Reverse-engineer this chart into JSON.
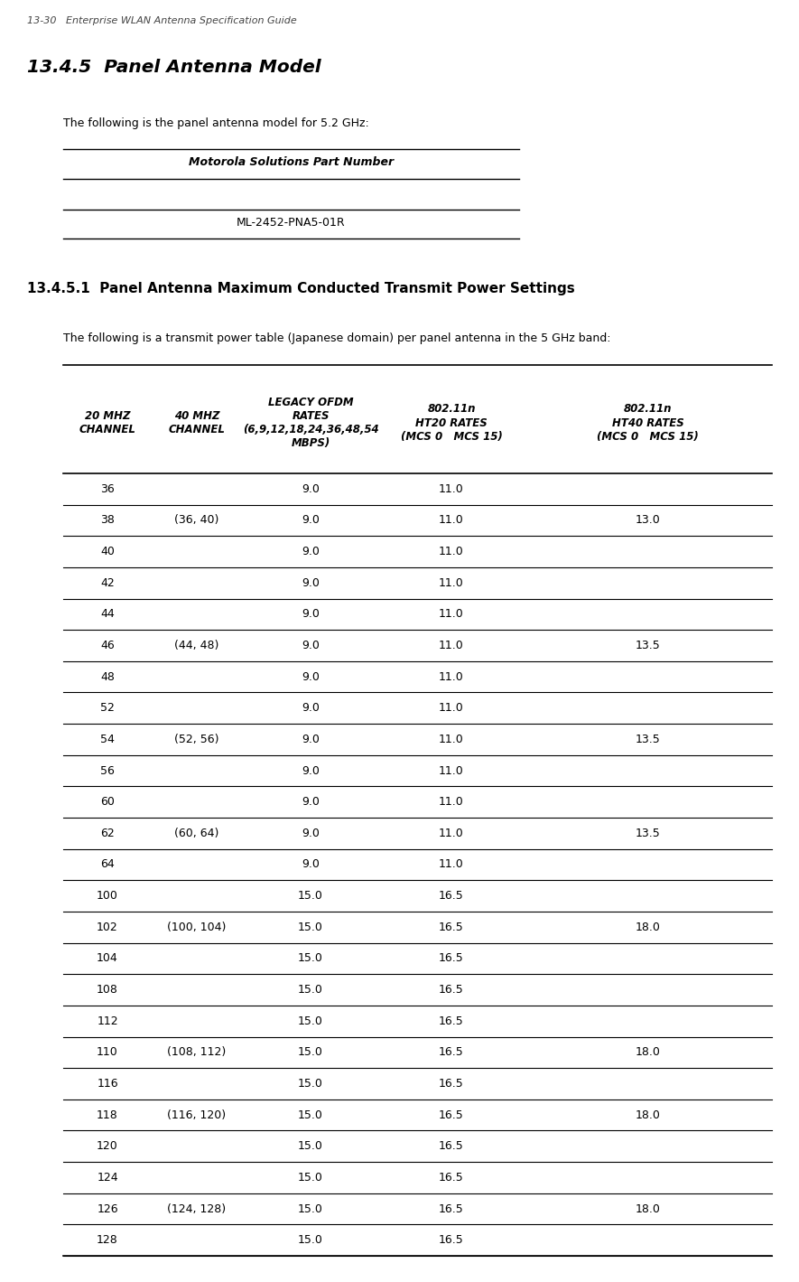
{
  "page_header": "13-30   Enterprise WLAN Antenna Specification Guide",
  "section_title": "13.4.5  Panel Antenna Model",
  "section_body": "The following is the panel antenna model for 5.2 GHz:",
  "part_number_label": "Motorola Solutions Part Number",
  "part_number_value": "ML-2452-PNA5-01R",
  "subsection_title": "13.4.5.1  Panel Antenna Maximum Conducted Transmit Power Settings",
  "subsection_body": "The following is a transmit power table (Japanese domain) per panel antenna in the 5 GHz band:",
  "table_rows": [
    [
      "36",
      "",
      "9.0",
      "11.0",
      ""
    ],
    [
      "38",
      "(36, 40)",
      "9.0",
      "11.0",
      "13.0"
    ],
    [
      "40",
      "",
      "9.0",
      "11.0",
      ""
    ],
    [
      "42",
      "",
      "9.0",
      "11.0",
      ""
    ],
    [
      "44",
      "",
      "9.0",
      "11.0",
      ""
    ],
    [
      "46",
      "(44, 48)",
      "9.0",
      "11.0",
      "13.5"
    ],
    [
      "48",
      "",
      "9.0",
      "11.0",
      ""
    ],
    [
      "52",
      "",
      "9.0",
      "11.0",
      ""
    ],
    [
      "54",
      "(52, 56)",
      "9.0",
      "11.0",
      "13.5"
    ],
    [
      "56",
      "",
      "9.0",
      "11.0",
      ""
    ],
    [
      "60",
      "",
      "9.0",
      "11.0",
      ""
    ],
    [
      "62",
      "(60, 64)",
      "9.0",
      "11.0",
      "13.5"
    ],
    [
      "64",
      "",
      "9.0",
      "11.0",
      ""
    ],
    [
      "100",
      "",
      "15.0",
      "16.5",
      ""
    ],
    [
      "102",
      "(100, 104)",
      "15.0",
      "16.5",
      "18.0"
    ],
    [
      "104",
      "",
      "15.0",
      "16.5",
      ""
    ],
    [
      "108",
      "",
      "15.0",
      "16.5",
      ""
    ],
    [
      "112",
      "",
      "15.0",
      "16.5",
      ""
    ],
    [
      "110",
      "(108, 112)",
      "15.0",
      "16.5",
      "18.0"
    ],
    [
      "116",
      "",
      "15.0",
      "16.5",
      ""
    ],
    [
      "118",
      "(116, 120)",
      "15.0",
      "16.5",
      "18.0"
    ],
    [
      "120",
      "",
      "15.0",
      "16.5",
      ""
    ],
    [
      "124",
      "",
      "15.0",
      "16.5",
      ""
    ],
    [
      "126",
      "(124, 128)",
      "15.0",
      "16.5",
      "18.0"
    ],
    [
      "128",
      "",
      "15.0",
      "16.5",
      ""
    ]
  ],
  "bg_color": "#ffffff"
}
